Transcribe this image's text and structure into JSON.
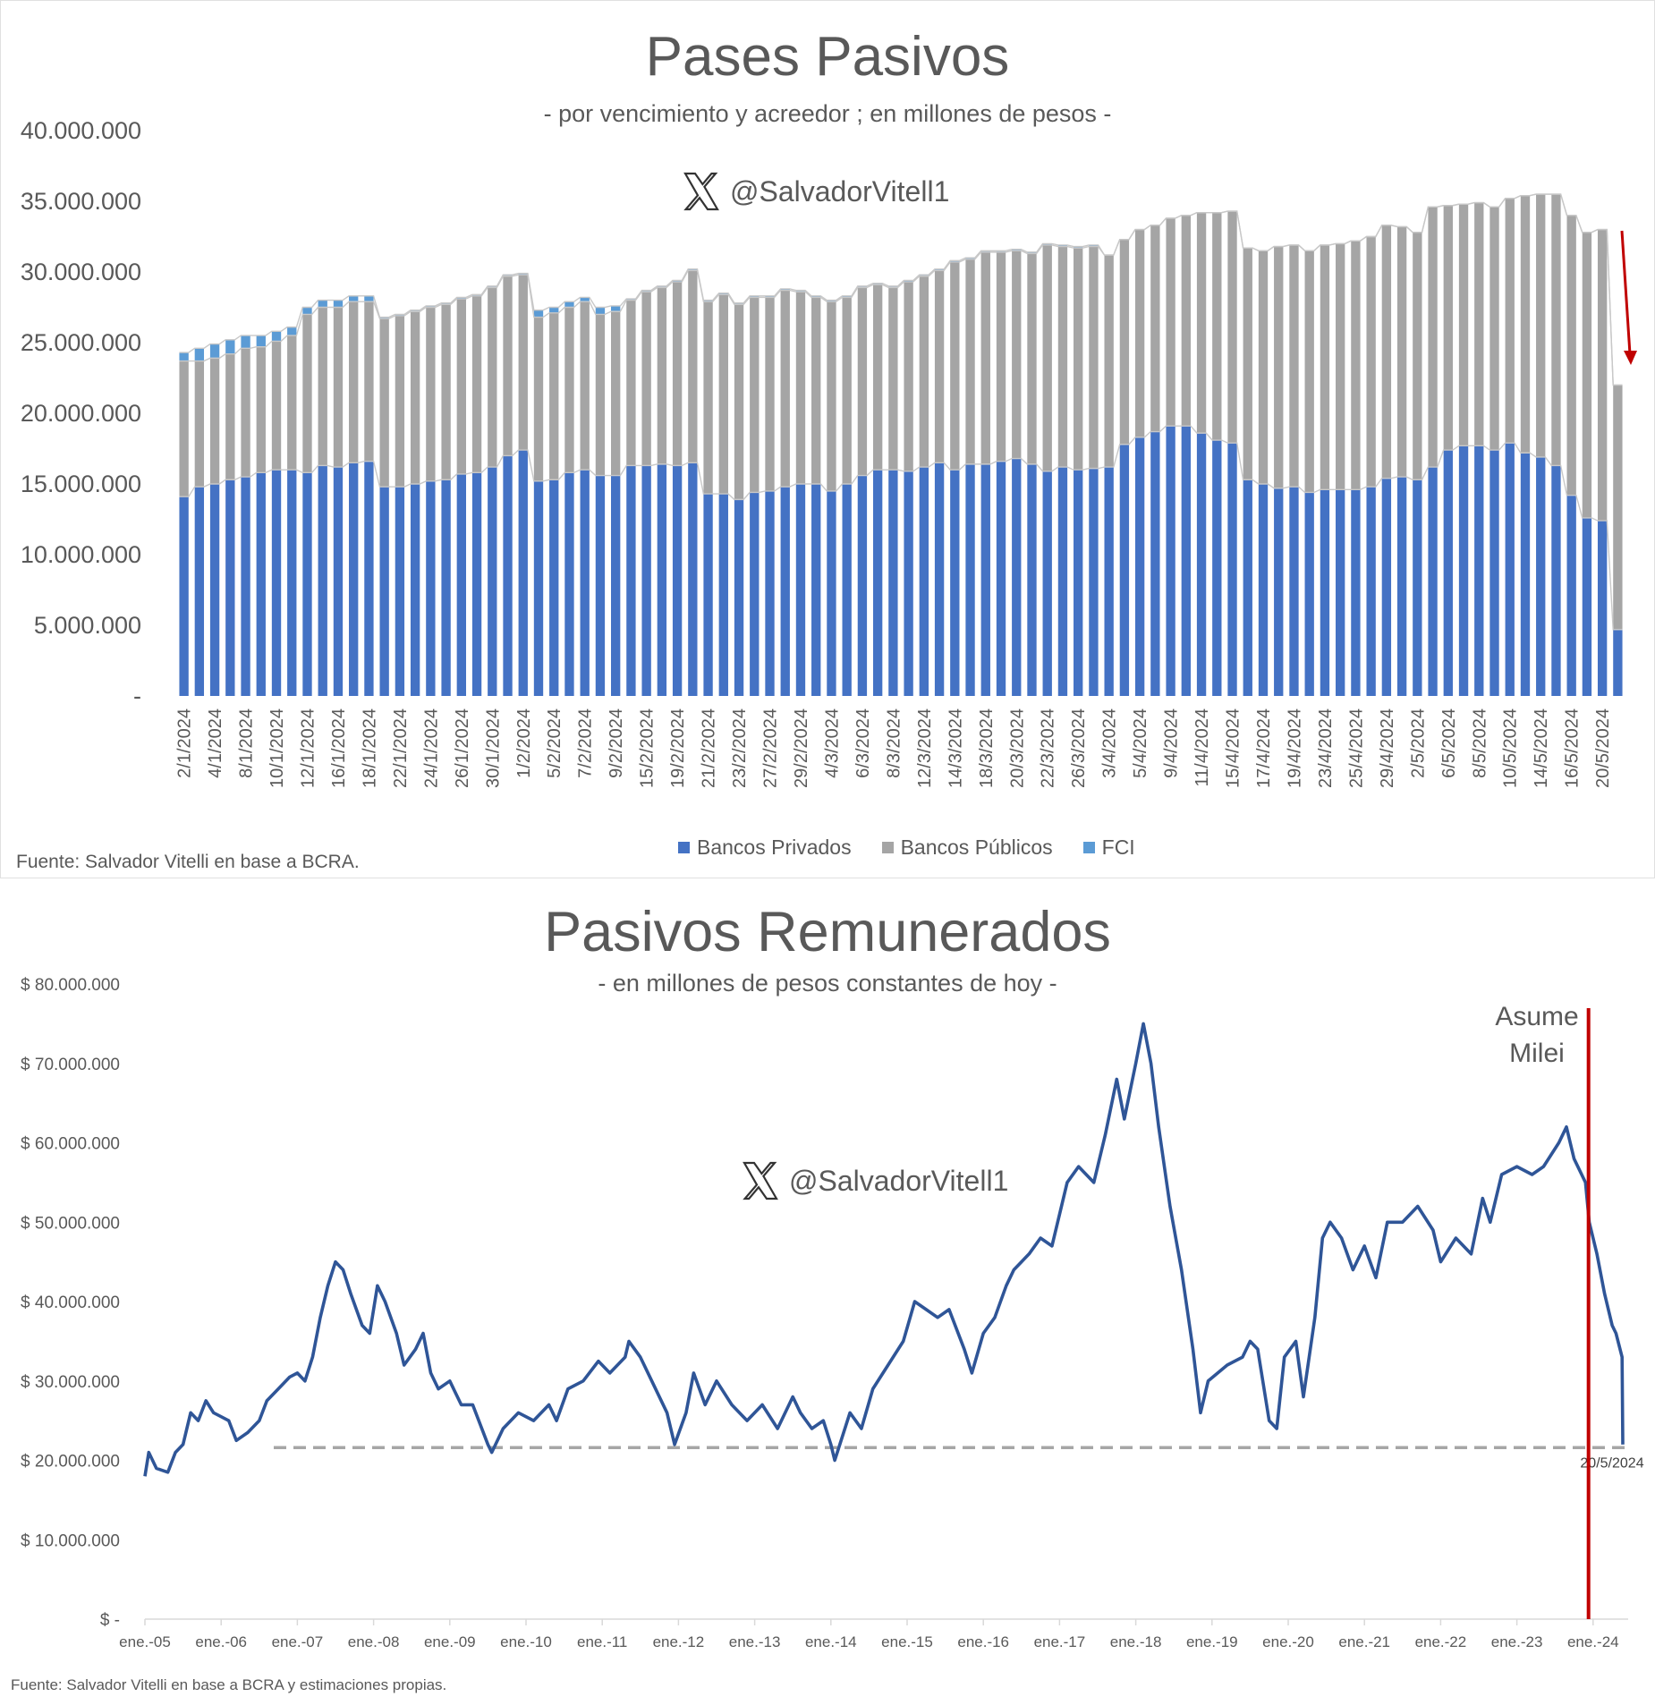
{
  "chart_data": [
    {
      "type": "bar",
      "stacked": true,
      "title": "Pases Pasivos",
      "subtitle": "- por vencimiento y acreedor ; en millones de pesos -",
      "watermark": "@SalvadorVitell1",
      "source": "Fuente: Salvador Vitelli en base a BCRA.",
      "value_scale": 1000000,
      "ylim": [
        0,
        40000000
      ],
      "yticks": [
        {
          "value": 0,
          "label": "-"
        },
        {
          "value": 5000000,
          "label": "5.000.000"
        },
        {
          "value": 10000000,
          "label": "10.000.000"
        },
        {
          "value": 15000000,
          "label": "15.000.000"
        },
        {
          "value": 20000000,
          "label": "20.000.000"
        },
        {
          "value": 25000000,
          "label": "25.000.000"
        },
        {
          "value": 30000000,
          "label": "30.000.000"
        },
        {
          "value": 35000000,
          "label": "35.000.000"
        },
        {
          "value": 40000000,
          "label": "40.000.000"
        }
      ],
      "legend_position": "bottom",
      "categories": [
        "2/1/2024",
        "",
        "4/1/2024",
        "",
        "8/1/2024",
        "",
        "10/1/2024",
        "",
        "12/1/2024",
        "",
        "16/1/2024",
        "",
        "18/1/2024",
        "",
        "22/1/2024",
        "",
        "24/1/2024",
        "",
        "26/1/2024",
        "",
        "30/1/2024",
        "",
        "1/2/2024",
        "",
        "5/2/2024",
        "",
        "7/2/2024",
        "",
        "9/2/2024",
        "",
        "15/2/2024",
        "",
        "19/2/2024",
        "",
        "21/2/2024",
        "",
        "23/2/2024",
        "",
        "27/2/2024",
        "",
        "29/2/2024",
        "",
        "4/3/2024",
        "",
        "6/3/2024",
        "",
        "8/3/2024",
        "",
        "12/3/2024",
        "",
        "14/3/2024",
        "",
        "18/3/2024",
        "",
        "20/3/2024",
        "",
        "22/3/2024",
        "",
        "26/3/2024",
        "",
        "3/4/2024",
        "",
        "5/4/2024",
        "",
        "9/4/2024",
        "",
        "11/4/2024",
        "",
        "15/4/2024",
        "",
        "17/4/2024",
        "",
        "19/4/2024",
        "",
        "23/4/2024",
        "",
        "25/4/2024",
        "",
        "29/4/2024",
        "",
        "2/5/2024",
        "",
        "6/5/2024",
        "",
        "8/5/2024",
        "",
        "10/5/2024",
        "",
        "14/5/2024",
        "",
        "16/5/2024",
        "",
        "20/5/2024",
        ""
      ],
      "series": [
        {
          "name": "Bancos Privados",
          "color": "#4472c4",
          "values": [
            14.1,
            14.8,
            15.0,
            15.3,
            15.5,
            15.8,
            16.0,
            16.0,
            15.8,
            16.3,
            16.2,
            16.5,
            16.6,
            14.8,
            14.8,
            15.0,
            15.2,
            15.3,
            15.7,
            15.8,
            16.2,
            17.0,
            17.4,
            15.2,
            15.3,
            15.8,
            16.0,
            15.6,
            15.6,
            16.3,
            16.3,
            16.4,
            16.3,
            16.5,
            14.3,
            14.3,
            13.9,
            14.4,
            14.5,
            14.8,
            15.0,
            15.0,
            14.5,
            15.0,
            15.6,
            16.0,
            16.0,
            15.9,
            16.2,
            16.5,
            16.0,
            16.4,
            16.4,
            16.6,
            16.8,
            16.4,
            15.9,
            16.2,
            16.0,
            16.1,
            16.2,
            17.8,
            18.3,
            18.7,
            19.1,
            19.1,
            18.6,
            18.1,
            17.9,
            15.3,
            15.0,
            14.7,
            14.8,
            14.4,
            14.6,
            14.6,
            14.6,
            14.8,
            15.4,
            15.5,
            15.3,
            16.2,
            17.4,
            17.7,
            17.7,
            17.4,
            17.9,
            17.2,
            16.9,
            16.3,
            14.2,
            12.6,
            12.4,
            4.7
          ]
        },
        {
          "name": "Bancos Públicos",
          "color": "#a5a5a5",
          "values": [
            9.6,
            8.9,
            8.9,
            8.9,
            9.1,
            8.9,
            9.1,
            9.5,
            11.2,
            11.2,
            11.3,
            11.4,
            11.3,
            11.9,
            12.1,
            12.2,
            12.3,
            12.4,
            12.4,
            12.5,
            12.7,
            12.7,
            12.4,
            11.6,
            11.8,
            11.7,
            11.9,
            11.4,
            11.6,
            11.7,
            12.3,
            12.5,
            13.0,
            13.6,
            13.6,
            14.1,
            13.8,
            13.8,
            13.7,
            13.9,
            13.6,
            13.2,
            13.4,
            13.2,
            13.3,
            13.1,
            12.9,
            13.4,
            13.5,
            13.6,
            14.7,
            14.5,
            15.0,
            14.8,
            14.7,
            14.9,
            16.0,
            15.6,
            15.7,
            15.7,
            15.0,
            14.5,
            14.7,
            14.6,
            14.7,
            14.9,
            15.6,
            16.1,
            16.4,
            16.4,
            16.5,
            17.1,
            17.1,
            17.1,
            17.3,
            17.4,
            17.6,
            17.7,
            17.9,
            17.7,
            17.5,
            18.4,
            17.3,
            17.1,
            17.2,
            17.2,
            17.3,
            18.2,
            18.6,
            19.2,
            19.8,
            20.2,
            20.6,
            17.3
          ]
        },
        {
          "name": "FCI",
          "color": "#5b9bd5",
          "values": [
            0.6,
            0.9,
            1.0,
            1.0,
            0.9,
            0.8,
            0.7,
            0.6,
            0.5,
            0.5,
            0.5,
            0.4,
            0.4,
            0.1,
            0.1,
            0.1,
            0.1,
            0.1,
            0.1,
            0.1,
            0.1,
            0.1,
            0.1,
            0.5,
            0.4,
            0.4,
            0.3,
            0.5,
            0.4,
            0.1,
            0.1,
            0.1,
            0.1,
            0.1,
            0.1,
            0.1,
            0.1,
            0.1,
            0.1,
            0.1,
            0.1,
            0.1,
            0.1,
            0.1,
            0.1,
            0.1,
            0.1,
            0.1,
            0.1,
            0.1,
            0.1,
            0.1,
            0.1,
            0.1,
            0.1,
            0.1,
            0.1,
            0.1,
            0.1,
            0.1,
            0,
            0,
            0,
            0,
            0,
            0,
            0,
            0,
            0,
            0,
            0,
            0,
            0,
            0,
            0,
            0,
            0,
            0,
            0,
            0,
            0,
            0,
            0,
            0,
            0,
            0,
            0,
            0,
            0,
            0,
            0,
            0,
            0,
            0
          ]
        }
      ],
      "annotation_color": "#c00000"
    },
    {
      "type": "line",
      "title": "Pasivos Remunerados",
      "subtitle": "- en millones de pesos constantes de hoy -",
      "watermark": "@SalvadorVitell1",
      "source": "Fuente: Salvador Vitelli en base a BCRA y estimaciones propias.",
      "value_scale": 1000000,
      "ylim": [
        0,
        80000000
      ],
      "yticks": [
        {
          "value": 0,
          "label": "$ -"
        },
        {
          "value": 10000000,
          "label": "$ 10.000.000"
        },
        {
          "value": 20000000,
          "label": "$ 20.000.000"
        },
        {
          "value": 30000000,
          "label": "$ 30.000.000"
        },
        {
          "value": 40000000,
          "label": "$ 40.000.000"
        },
        {
          "value": 50000000,
          "label": "$ 50.000.000"
        },
        {
          "value": 60000000,
          "label": "$ 60.000.000"
        },
        {
          "value": 70000000,
          "label": "$ 70.000.000"
        },
        {
          "value": 80000000,
          "label": "$ 80.000.000"
        }
      ],
      "xticks": [
        {
          "year": 2005,
          "label": "ene.-05"
        },
        {
          "year": 2006,
          "label": "ene.-06"
        },
        {
          "year": 2007,
          "label": "ene.-07"
        },
        {
          "year": 2008,
          "label": "ene.-08"
        },
        {
          "year": 2009,
          "label": "ene.-09"
        },
        {
          "year": 2010,
          "label": "ene.-10"
        },
        {
          "year": 2011,
          "label": "ene.-11"
        },
        {
          "year": 2012,
          "label": "ene.-12"
        },
        {
          "year": 2013,
          "label": "ene.-13"
        },
        {
          "year": 2014,
          "label": "ene.-14"
        },
        {
          "year": 2015,
          "label": "ene.-15"
        },
        {
          "year": 2016,
          "label": "ene.-16"
        },
        {
          "year": 2017,
          "label": "ene.-17"
        },
        {
          "year": 2018,
          "label": "ene.-18"
        },
        {
          "year": 2019,
          "label": "ene.-19"
        },
        {
          "year": 2020,
          "label": "ene.-20"
        },
        {
          "year": 2021,
          "label": "ene.-21"
        },
        {
          "year": 2022,
          "label": "ene.-22"
        },
        {
          "year": 2023,
          "label": "ene.-23"
        },
        {
          "year": 2024,
          "label": "ene.-24"
        }
      ],
      "series": [
        {
          "name": "Pasivos Remunerados",
          "color": "#2f5597",
          "x": [
            2005.0,
            2005.05,
            2005.15,
            2005.3,
            2005.4,
            2005.5,
            2005.6,
            2005.7,
            2005.8,
            2005.9,
            2006.0,
            2006.1,
            2006.2,
            2006.35,
            2006.5,
            2006.6,
            2006.75,
            2006.9,
            2007.0,
            2007.1,
            2007.2,
            2007.3,
            2007.4,
            2007.5,
            2007.6,
            2007.7,
            2007.85,
            2007.95,
            2008.05,
            2008.15,
            2008.3,
            2008.4,
            2008.55,
            2008.65,
            2008.75,
            2008.85,
            2009.0,
            2009.15,
            2009.3,
            2009.5,
            2009.55,
            2009.7,
            2009.9,
            2010.1,
            2010.3,
            2010.4,
            2010.55,
            2010.75,
            2010.95,
            2011.1,
            2011.3,
            2011.35,
            2011.5,
            2011.65,
            2011.85,
            2011.95,
            2012.1,
            2012.2,
            2012.35,
            2012.5,
            2012.7,
            2012.9,
            2013.1,
            2013.3,
            2013.5,
            2013.6,
            2013.75,
            2013.9,
            2014.0,
            2014.05,
            2014.15,
            2014.25,
            2014.4,
            2014.55,
            2014.75,
            2014.95,
            2015.1,
            2015.25,
            2015.4,
            2015.55,
            2015.75,
            2015.85,
            2016.0,
            2016.15,
            2016.3,
            2016.4,
            2016.6,
            2016.75,
            2016.9,
            2017.1,
            2017.25,
            2017.45,
            2017.6,
            2017.75,
            2017.85,
            2018.0,
            2018.1,
            2018.2,
            2018.3,
            2018.45,
            2018.6,
            2018.75,
            2018.85,
            2018.95,
            2019.2,
            2019.4,
            2019.5,
            2019.6,
            2019.75,
            2019.85,
            2019.95,
            2020.1,
            2020.2,
            2020.35,
            2020.45,
            2020.55,
            2020.7,
            2020.85,
            2021.0,
            2021.15,
            2021.3,
            2021.5,
            2021.7,
            2021.9,
            2022.0,
            2022.2,
            2022.4,
            2022.55,
            2022.65,
            2022.8,
            2023.0,
            2023.2,
            2023.35,
            2023.55,
            2023.65,
            2023.75,
            2023.9,
            2023.95,
            2024.05,
            2024.15,
            2024.25,
            2024.3,
            2024.38,
            2024.39
          ],
          "y": [
            18,
            21,
            19,
            18.5,
            21,
            22,
            26,
            25,
            27.5,
            26,
            25.5,
            25,
            22.5,
            23.5,
            25,
            27.5,
            29,
            30.5,
            31,
            30,
            33,
            38,
            42,
            45,
            44,
            41,
            37,
            36,
            42,
            40,
            36,
            32,
            34,
            36,
            31,
            29,
            30,
            27,
            27,
            22,
            21,
            24,
            26,
            25,
            27,
            25,
            29,
            30,
            32.5,
            31,
            33,
            35,
            33,
            30,
            26,
            22,
            26,
            31,
            27,
            30,
            27,
            25,
            27,
            24,
            28,
            26,
            24,
            25,
            22,
            20,
            23,
            26,
            24,
            29,
            32,
            35,
            40,
            39,
            38,
            39,
            34,
            31,
            36,
            38,
            42,
            44,
            46,
            48,
            47,
            55,
            57,
            55,
            61,
            68,
            63,
            70,
            75,
            70,
            62,
            52,
            44,
            34,
            26,
            30,
            32,
            33,
            35,
            34,
            25,
            24,
            33,
            35,
            28,
            38,
            48,
            50,
            48,
            44,
            47,
            43,
            50,
            50,
            52,
            49,
            45,
            48,
            46,
            53,
            50,
            56,
            57,
            56,
            57,
            60,
            62,
            58,
            55,
            50,
            46,
            41,
            37,
            36,
            33,
            22
          ]
        }
      ],
      "reference_line": {
        "value": 21600000,
        "start_year": 2006.69,
        "label": "20/5/2024",
        "color": "#a6a6a6"
      },
      "event_line": {
        "year": 2023.94,
        "label_line1": "Asume",
        "label_line2": "Milei",
        "color": "#c00000"
      }
    }
  ]
}
